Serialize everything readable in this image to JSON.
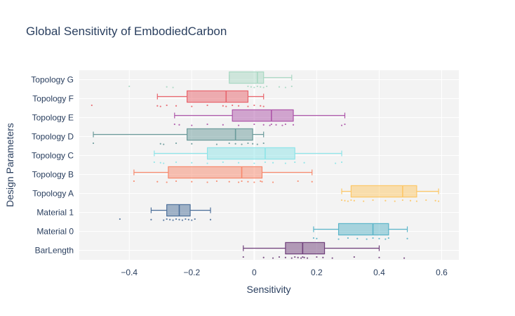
{
  "chart_data": {
    "type": "box",
    "orientation": "horizontal",
    "title": "Global Sensitivity of EmbodiedCarbon",
    "xlabel": "Sensitivity",
    "ylabel": "Design Parameters",
    "xlim": [
      -0.56,
      0.655
    ],
    "x_ticks": [
      -0.4,
      -0.2,
      0,
      0.2,
      0.4,
      0.6
    ],
    "x_tick_labels": [
      "−0.4",
      "−0.2",
      "0",
      "0.2",
      "0.4",
      "0.6"
    ],
    "grid": true,
    "legend": "none",
    "series": [
      {
        "name": "BarLength",
        "color": "#6f3f7a",
        "min": -0.035,
        "q1": 0.1,
        "median": 0.155,
        "q3": 0.225,
        "max": 0.4,
        "points": [
          -0.035,
          0.03,
          0.06,
          0.08,
          0.1,
          0.12,
          0.13,
          0.14,
          0.15,
          0.155,
          0.16,
          0.17,
          0.2,
          0.22,
          0.25,
          0.32,
          0.4,
          0.48
        ]
      },
      {
        "name": "Material 0",
        "color": "#5ab4c8",
        "min": 0.19,
        "q1": 0.27,
        "median": 0.38,
        "q3": 0.43,
        "max": 0.49,
        "points": [
          0.19,
          0.2,
          0.27,
          0.3,
          0.33,
          0.36,
          0.38,
          0.4,
          0.42,
          0.43,
          0.49
        ]
      },
      {
        "name": "Material 1",
        "color": "#4c6f9a",
        "min": -0.33,
        "q1": -0.28,
        "median": -0.24,
        "q3": -0.205,
        "max": -0.14,
        "points": [
          -0.43,
          -0.33,
          -0.29,
          -0.28,
          -0.27,
          -0.26,
          -0.25,
          -0.24,
          -0.23,
          -0.22,
          -0.21,
          -0.2,
          -0.19,
          -0.14
        ]
      },
      {
        "name": "Topology A",
        "color": "#fdc765",
        "min": 0.28,
        "q1": 0.31,
        "median": 0.475,
        "q3": 0.52,
        "max": 0.59,
        "points": [
          0.28,
          0.29,
          0.3,
          0.31,
          0.32,
          0.35,
          0.38,
          0.42,
          0.45,
          0.475,
          0.5,
          0.52,
          0.55,
          0.58,
          0.59
        ]
      },
      {
        "name": "Topology B",
        "color": "#f7886c",
        "min": -0.385,
        "q1": -0.275,
        "median": -0.04,
        "q3": 0.025,
        "max": 0.185,
        "points": [
          -0.385,
          -0.31,
          -0.28,
          -0.25,
          -0.2,
          -0.15,
          -0.12,
          -0.08,
          -0.05,
          -0.04,
          -0.02,
          0.0,
          0.02,
          0.025,
          0.06,
          0.14,
          0.185
        ]
      },
      {
        "name": "Topology C",
        "color": "#8de4e8",
        "min": -0.32,
        "q1": -0.15,
        "median": 0.035,
        "q3": 0.13,
        "max": 0.28,
        "points": [
          -0.32,
          -0.3,
          -0.29,
          -0.25,
          -0.2,
          -0.15,
          -0.1,
          -0.05,
          0.0,
          0.035,
          0.06,
          0.1,
          0.13,
          0.16,
          0.26,
          0.28
        ]
      },
      {
        "name": "Topology D",
        "color": "#6a9a9a",
        "min": -0.515,
        "q1": -0.215,
        "median": -0.06,
        "q3": -0.005,
        "max": 0.03,
        "points": [
          -0.515,
          -0.3,
          -0.29,
          -0.25,
          -0.2,
          -0.12,
          -0.08,
          -0.06,
          -0.04,
          -0.02,
          -0.005,
          0.01,
          0.03
        ]
      },
      {
        "name": "Topology E",
        "color": "#ad55a9",
        "min": -0.255,
        "q1": -0.07,
        "median": 0.055,
        "q3": 0.125,
        "max": 0.29,
        "points": [
          -0.255,
          -0.24,
          -0.2,
          -0.15,
          -0.1,
          -0.05,
          0.0,
          0.03,
          0.05,
          0.055,
          0.07,
          0.09,
          0.1,
          0.125,
          0.28,
          0.29
        ]
      },
      {
        "name": "Topology F",
        "color": "#e8646c",
        "min": -0.31,
        "q1": -0.215,
        "median": -0.09,
        "q3": -0.02,
        "max": 0.03,
        "points": [
          -0.52,
          -0.31,
          -0.3,
          -0.28,
          -0.25,
          -0.2,
          -0.15,
          -0.1,
          -0.09,
          -0.07,
          -0.05,
          -0.02,
          0.0,
          0.02,
          0.03
        ]
      },
      {
        "name": "Topology G",
        "color": "#a9d8c3",
        "min": -0.08,
        "q1": -0.08,
        "median": 0.01,
        "q3": 0.03,
        "max": 0.12,
        "points": [
          -0.4,
          -0.28,
          -0.26,
          -0.02,
          -0.01,
          0.0,
          0.01,
          0.02,
          0.03,
          0.04,
          0.08,
          0.1,
          0.12
        ]
      }
    ]
  }
}
